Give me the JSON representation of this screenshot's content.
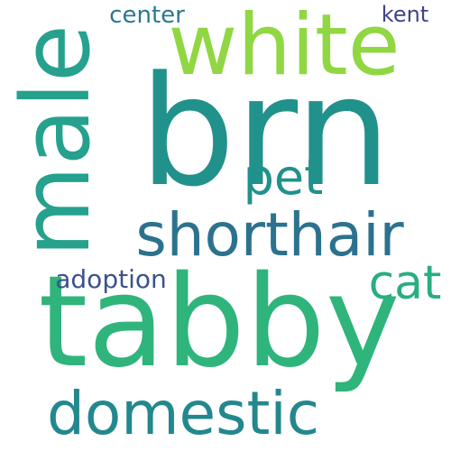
{
  "words": [
    {
      "text": "brn",
      "color": "#21918c",
      "weight": 1.0,
      "orientation": "horizontal"
    },
    {
      "text": "tabby",
      "color": "#2fb47c",
      "weight": 0.98,
      "orientation": "horizontal"
    },
    {
      "text": "white",
      "color": "#90d743",
      "weight": 0.62,
      "orientation": "horizontal"
    },
    {
      "text": "male",
      "color": "#25a18e",
      "weight": 0.58,
      "orientation": "vertical"
    },
    {
      "text": "domestic",
      "color": "#23888e",
      "weight": 0.5,
      "orientation": "horizontal"
    },
    {
      "text": "shorthair",
      "color": "#2c728e",
      "weight": 0.45,
      "orientation": "horizontal"
    },
    {
      "text": "cat",
      "color": "#28ae80",
      "weight": 0.31,
      "orientation": "horizontal"
    },
    {
      "text": "pet",
      "color": "#21918c",
      "weight": 0.28,
      "orientation": "horizontal"
    },
    {
      "text": "adoption",
      "color": "#3b528b",
      "weight": 0.18,
      "orientation": "horizontal"
    },
    {
      "text": "center",
      "color": "#2a788e",
      "weight": 0.16,
      "orientation": "horizontal"
    },
    {
      "text": "kent",
      "color": "#414487",
      "weight": 0.15,
      "orientation": "horizontal"
    }
  ]
}
